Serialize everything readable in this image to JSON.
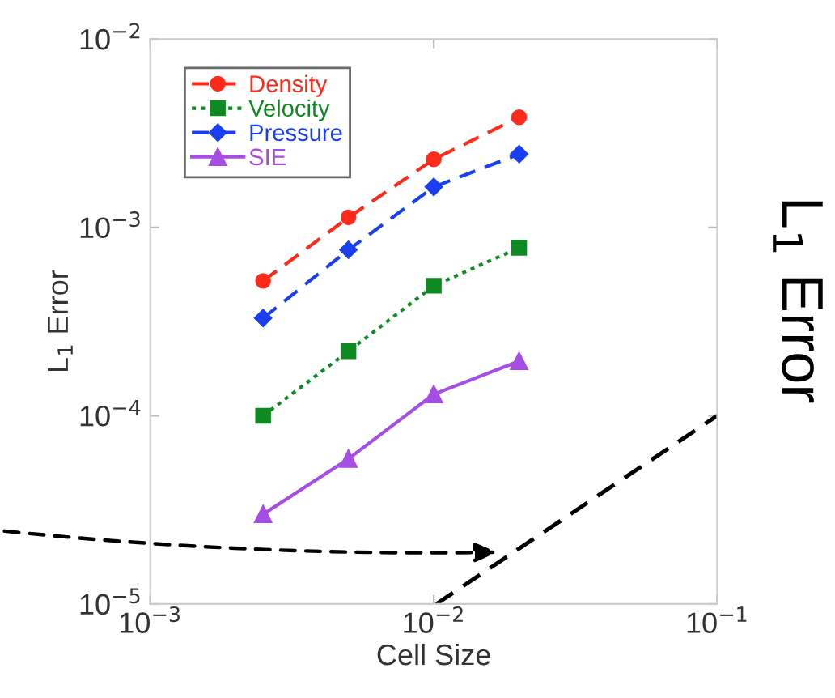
{
  "chart_data": {
    "type": "line",
    "xlabel": "Cell Size",
    "ylabel": "L$_{1}$ Error",
    "log": "xy",
    "x": [
      0.0025,
      0.005,
      0.01,
      0.02
    ],
    "series": [
      {
        "name": "Density",
        "color": "#ff2a1a",
        "marker": "circle",
        "line_style": "dashed",
        "values": [
          0.00052,
          0.00113,
          0.0023,
          0.00385
        ]
      },
      {
        "name": "Velocity",
        "color": "#0e8a22",
        "marker": "square",
        "line_style": "dotted",
        "values": [
          0.0001,
          0.00022,
          0.00049,
          0.00078
        ]
      },
      {
        "name": "Pressure",
        "color": "#1a3ff0",
        "marker": "diamond",
        "line_style": "dashed",
        "values": [
          0.00033,
          0.00076,
          0.00164,
          0.00245
        ]
      },
      {
        "name": "SIE",
        "color": "#a64de6",
        "marker": "triangle",
        "line_style": "solid",
        "values": [
          3e-05,
          5.9e-05,
          0.00013,
          0.000195
        ]
      },
      {
        "color": "#000000",
        "marker": "none",
        "line_style": "dashed",
        "x": [
          0.0102,
          0.1
        ],
        "values": [
          1e-05,
          0.0001
        ]
      }
    ],
    "xlim": [
      0.001,
      0.1
    ],
    "ylim": [
      1e-05,
      0.01
    ],
    "xticks": [
      {
        "value": 0.001,
        "label": "10$^{−3}$"
      },
      {
        "value": 0.01,
        "label": "10$^{−2}$"
      },
      {
        "value": 0.1,
        "label": "10$^{−1}$"
      }
    ],
    "yticks": [
      {
        "value": 1e-05,
        "label": "10$^{−5}$"
      },
      {
        "value": 0.0001,
        "label": "10$^{−4}$"
      },
      {
        "value": 0.001,
        "label": "10$^{−3}$"
      },
      {
        "value": 0.01,
        "label": "10$^{−2}$"
      }
    ],
    "grid": false,
    "legend": "top left",
    "annotations": [
      "L$_{1}$ Error"
    ]
  }
}
